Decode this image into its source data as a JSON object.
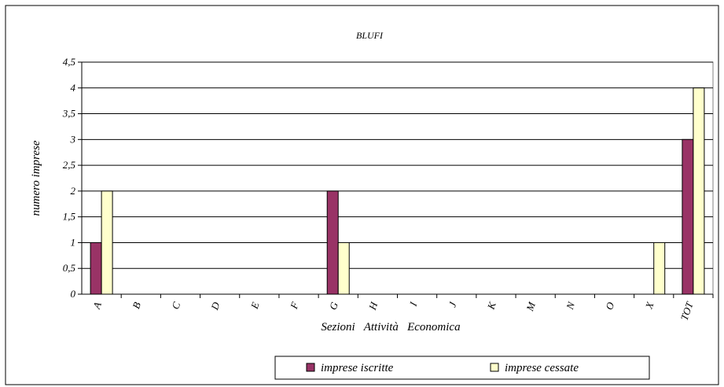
{
  "chart_data": {
    "type": "bar",
    "title": "BLUFI",
    "xlabel": "Sezioni   Attività   Economica",
    "ylabel": "numero imprese",
    "ylim": [
      0,
      4.5
    ],
    "y_ticks": [
      "0",
      "0,5",
      "1",
      "1,5",
      "2",
      "2,5",
      "3",
      "3,5",
      "4",
      "4,5"
    ],
    "categories": [
      "A",
      "B",
      "C",
      "D",
      "E",
      "F",
      "G",
      "H",
      "I",
      "J",
      "K",
      "M",
      "N",
      "O",
      "X",
      "TOT"
    ],
    "series": [
      {
        "name": "imprese iscritte",
        "color": "#993366",
        "values": [
          1,
          0,
          0,
          0,
          0,
          0,
          2,
          0,
          0,
          0,
          0,
          0,
          0,
          0,
          0,
          3
        ]
      },
      {
        "name": "imprese cessate",
        "color": "#ffffcc",
        "values": [
          2,
          0,
          0,
          0,
          0,
          0,
          1,
          0,
          0,
          0,
          0,
          0,
          0,
          0,
          1,
          4
        ]
      }
    ],
    "grid": true,
    "legend": "bottom"
  }
}
